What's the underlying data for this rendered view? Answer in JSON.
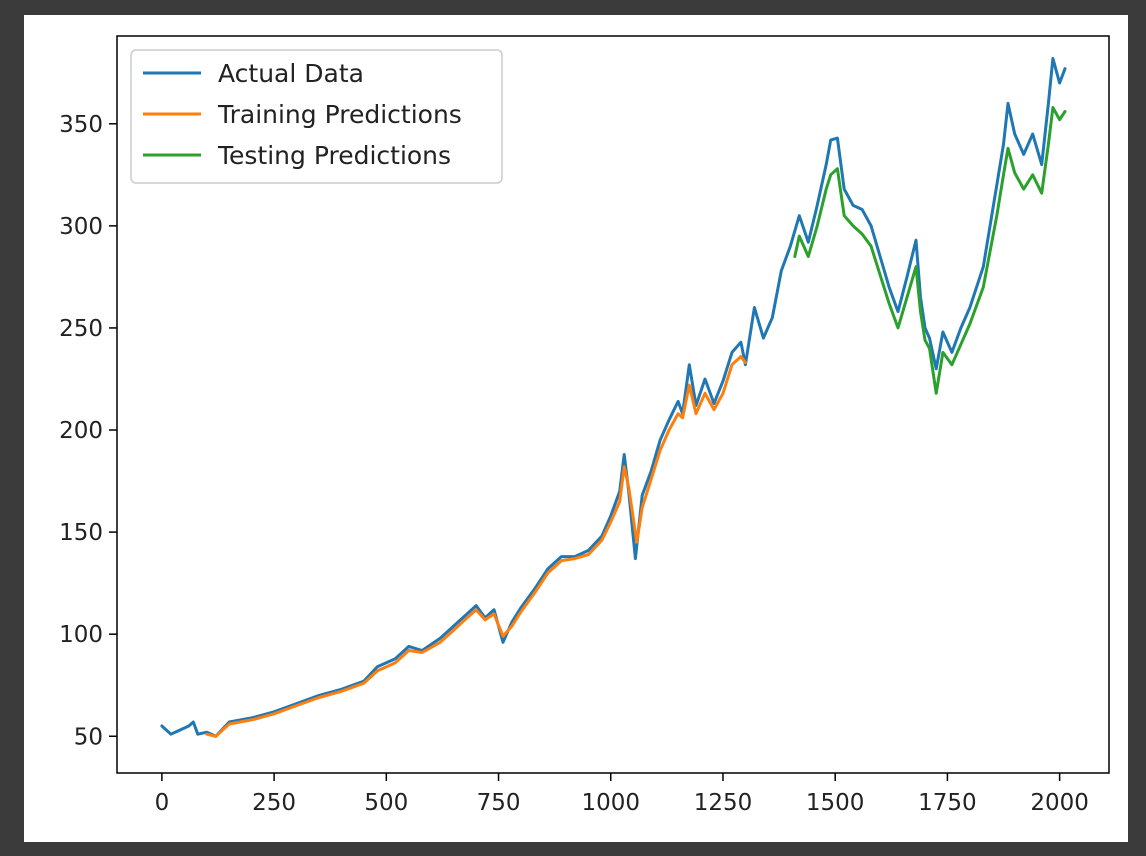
{
  "chart_data": {
    "type": "line",
    "title": "",
    "xlabel": "",
    "ylabel": "",
    "xlim": [
      -100,
      2110
    ],
    "ylim": [
      32,
      393
    ],
    "xticks": [
      0,
      250,
      500,
      750,
      1000,
      1250,
      1500,
      1750,
      2000
    ],
    "yticks": [
      50,
      100,
      150,
      200,
      250,
      300,
      350
    ],
    "grid": false,
    "legend_position": "top-left",
    "series": [
      {
        "name": "Actual Data",
        "color": "#1f77b4",
        "points": [
          [
            0,
            55
          ],
          [
            20,
            51
          ],
          [
            40,
            53
          ],
          [
            60,
            55
          ],
          [
            70,
            57
          ],
          [
            80,
            51
          ],
          [
            100,
            52
          ],
          [
            120,
            50
          ],
          [
            150,
            57
          ],
          [
            200,
            59
          ],
          [
            250,
            62
          ],
          [
            300,
            66
          ],
          [
            350,
            70
          ],
          [
            400,
            73
          ],
          [
            450,
            77
          ],
          [
            480,
            84
          ],
          [
            520,
            88
          ],
          [
            550,
            94
          ],
          [
            580,
            92
          ],
          [
            620,
            98
          ],
          [
            650,
            104
          ],
          [
            680,
            110
          ],
          [
            700,
            114
          ],
          [
            720,
            108
          ],
          [
            740,
            112
          ],
          [
            760,
            96
          ],
          [
            780,
            106
          ],
          [
            800,
            113
          ],
          [
            830,
            122
          ],
          [
            860,
            132
          ],
          [
            890,
            138
          ],
          [
            920,
            138
          ],
          [
            950,
            141
          ],
          [
            980,
            148
          ],
          [
            1000,
            158
          ],
          [
            1020,
            170
          ],
          [
            1030,
            188
          ],
          [
            1040,
            170
          ],
          [
            1055,
            137
          ],
          [
            1070,
            168
          ],
          [
            1090,
            180
          ],
          [
            1110,
            195
          ],
          [
            1130,
            205
          ],
          [
            1150,
            214
          ],
          [
            1160,
            208
          ],
          [
            1175,
            232
          ],
          [
            1190,
            212
          ],
          [
            1210,
            225
          ],
          [
            1230,
            213
          ],
          [
            1250,
            224
          ],
          [
            1270,
            238
          ],
          [
            1290,
            243
          ],
          [
            1300,
            232
          ],
          [
            1320,
            260
          ],
          [
            1340,
            245
          ],
          [
            1360,
            255
          ],
          [
            1380,
            278
          ],
          [
            1400,
            290
          ],
          [
            1420,
            305
          ],
          [
            1440,
            292
          ],
          [
            1460,
            310
          ],
          [
            1480,
            330
          ],
          [
            1490,
            342
          ],
          [
            1505,
            343
          ],
          [
            1520,
            318
          ],
          [
            1540,
            310
          ],
          [
            1560,
            308
          ],
          [
            1580,
            300
          ],
          [
            1600,
            285
          ],
          [
            1620,
            270
          ],
          [
            1640,
            258
          ],
          [
            1660,
            275
          ],
          [
            1680,
            293
          ],
          [
            1690,
            265
          ],
          [
            1700,
            250
          ],
          [
            1710,
            245
          ],
          [
            1725,
            230
          ],
          [
            1740,
            248
          ],
          [
            1760,
            238
          ],
          [
            1780,
            250
          ],
          [
            1800,
            260
          ],
          [
            1830,
            280
          ],
          [
            1860,
            320
          ],
          [
            1875,
            340
          ],
          [
            1885,
            360
          ],
          [
            1900,
            345
          ],
          [
            1920,
            335
          ],
          [
            1940,
            345
          ],
          [
            1960,
            330
          ],
          [
            1975,
            360
          ],
          [
            1985,
            382
          ],
          [
            2000,
            370
          ],
          [
            2012,
            377
          ]
        ]
      },
      {
        "name": "Training Predictions",
        "color": "#ff7f0e",
        "points": [
          [
            100,
            51
          ],
          [
            120,
            50
          ],
          [
            150,
            56
          ],
          [
            200,
            58
          ],
          [
            250,
            61
          ],
          [
            300,
            65
          ],
          [
            350,
            69
          ],
          [
            400,
            72
          ],
          [
            450,
            76
          ],
          [
            480,
            82
          ],
          [
            520,
            86
          ],
          [
            550,
            92
          ],
          [
            580,
            91
          ],
          [
            620,
            96
          ],
          [
            650,
            102
          ],
          [
            680,
            108
          ],
          [
            700,
            112
          ],
          [
            720,
            107
          ],
          [
            740,
            110
          ],
          [
            760,
            99
          ],
          [
            780,
            104
          ],
          [
            800,
            111
          ],
          [
            830,
            120
          ],
          [
            860,
            130
          ],
          [
            890,
            136
          ],
          [
            920,
            137
          ],
          [
            950,
            139
          ],
          [
            980,
            146
          ],
          [
            1000,
            155
          ],
          [
            1020,
            165
          ],
          [
            1030,
            182
          ],
          [
            1040,
            172
          ],
          [
            1058,
            145
          ],
          [
            1070,
            162
          ],
          [
            1090,
            176
          ],
          [
            1110,
            190
          ],
          [
            1130,
            200
          ],
          [
            1150,
            208
          ],
          [
            1160,
            206
          ],
          [
            1175,
            222
          ],
          [
            1190,
            208
          ],
          [
            1210,
            218
          ],
          [
            1230,
            210
          ],
          [
            1250,
            218
          ],
          [
            1270,
            232
          ],
          [
            1290,
            236
          ],
          [
            1300,
            233
          ]
        ]
      },
      {
        "name": "Testing Predictions",
        "color": "#2ca02c",
        "points": [
          [
            1410,
            285
          ],
          [
            1420,
            295
          ],
          [
            1440,
            285
          ],
          [
            1460,
            300
          ],
          [
            1480,
            318
          ],
          [
            1490,
            325
          ],
          [
            1505,
            328
          ],
          [
            1520,
            305
          ],
          [
            1540,
            300
          ],
          [
            1560,
            296
          ],
          [
            1580,
            290
          ],
          [
            1600,
            276
          ],
          [
            1620,
            262
          ],
          [
            1640,
            250
          ],
          [
            1660,
            265
          ],
          [
            1680,
            280
          ],
          [
            1690,
            258
          ],
          [
            1700,
            244
          ],
          [
            1710,
            240
          ],
          [
            1725,
            218
          ],
          [
            1740,
            238
          ],
          [
            1760,
            232
          ],
          [
            1780,
            242
          ],
          [
            1800,
            252
          ],
          [
            1830,
            270
          ],
          [
            1860,
            305
          ],
          [
            1875,
            325
          ],
          [
            1885,
            338
          ],
          [
            1900,
            326
          ],
          [
            1920,
            318
          ],
          [
            1940,
            325
          ],
          [
            1960,
            316
          ],
          [
            1975,
            340
          ],
          [
            1985,
            358
          ],
          [
            2000,
            352
          ],
          [
            2012,
            356
          ]
        ]
      }
    ]
  }
}
